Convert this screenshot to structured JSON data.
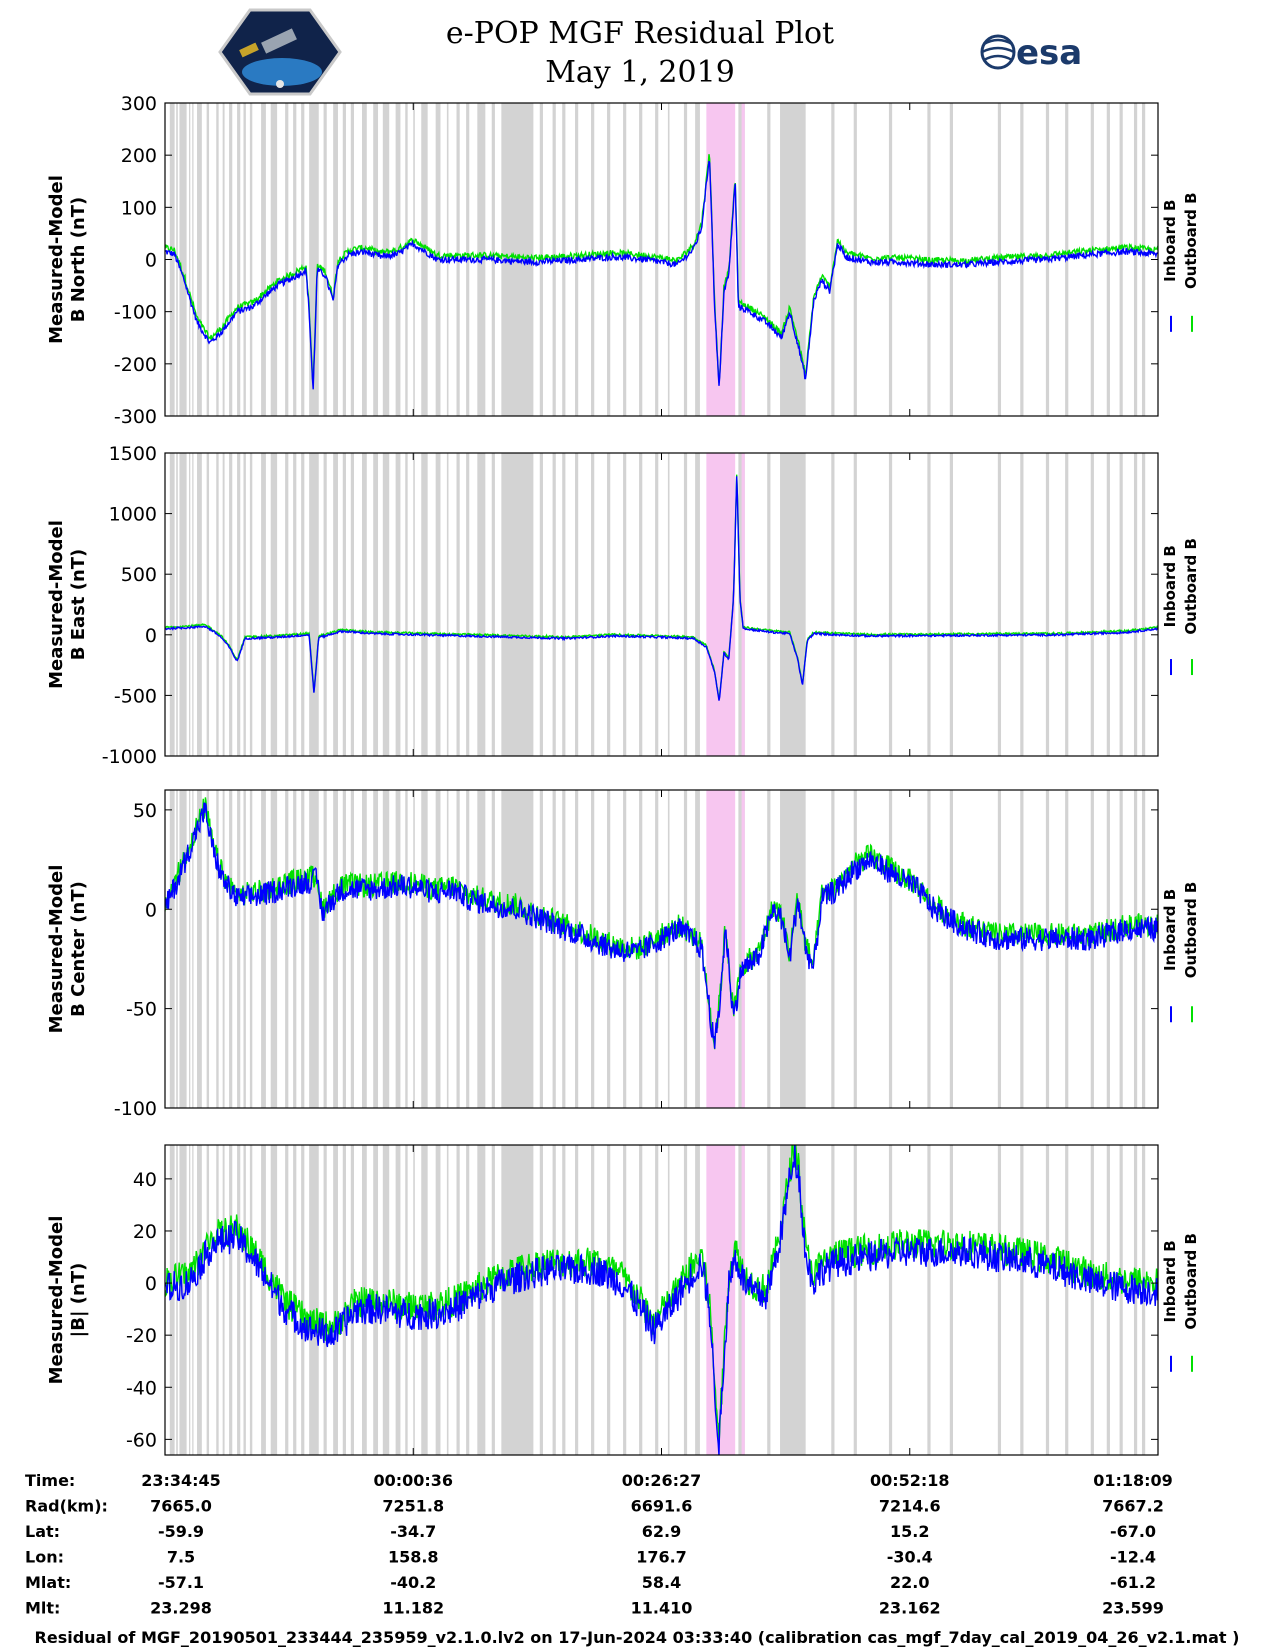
{
  "chart_data": {
    "type": "line",
    "title_lines": [
      "e-POP MGF Residual Plot",
      "May 1, 2019"
    ],
    "logo_right_text": "esa",
    "legend": [
      "Inboard B",
      "Outboard B"
    ],
    "series_colors": {
      "Inboard B": "#0000ff",
      "Outboard B": "#00e000"
    },
    "highlight_colors": {
      "gap": "#d3d3d3",
      "event": "#f7c6f0"
    },
    "x_domain": [
      0,
      6200
    ],
    "gap_intervals": [
      [
        30,
        60
      ],
      [
        70,
        80
      ],
      [
        90,
        135
      ],
      [
        150,
        158
      ],
      [
        170,
        178
      ],
      [
        200,
        230
      ],
      [
        260,
        275
      ],
      [
        320,
        335
      ],
      [
        360,
        372
      ],
      [
        400,
        420
      ],
      [
        450,
        470
      ],
      [
        490,
        505
      ],
      [
        530,
        545
      ],
      [
        600,
        630
      ],
      [
        660,
        700
      ],
      [
        750,
        770
      ],
      [
        800,
        820
      ],
      [
        850,
        870
      ],
      [
        900,
        960
      ],
      [
        990,
        1010
      ],
      [
        1050,
        1080
      ],
      [
        1110,
        1130
      ],
      [
        1160,
        1180
      ],
      [
        1230,
        1260
      ],
      [
        1300,
        1330
      ],
      [
        1360,
        1400
      ],
      [
        1440,
        1470
      ],
      [
        1500,
        1515
      ],
      [
        1550,
        1560
      ],
      [
        1600,
        1640
      ],
      [
        1690,
        1720
      ],
      [
        1760,
        1770
      ],
      [
        1820,
        1840
      ],
      [
        1880,
        1900
      ],
      [
        1950,
        2000
      ],
      [
        2040,
        2060
      ],
      [
        2100,
        2300
      ],
      [
        2340,
        2360
      ],
      [
        2420,
        2440
      ],
      [
        2480,
        2500
      ],
      [
        2560,
        2580
      ],
      [
        2660,
        2680
      ],
      [
        2760,
        2780
      ],
      [
        2860,
        2880
      ],
      [
        2960,
        2980
      ],
      [
        3060,
        3080
      ],
      [
        3140,
        3150
      ],
      [
        3240,
        3260
      ],
      [
        3310,
        3340
      ],
      [
        3500,
        3520
      ],
      [
        3580,
        3620
      ],
      [
        3760,
        3780
      ],
      [
        3840,
        4000
      ],
      [
        4160,
        4180
      ],
      [
        4300,
        4320
      ],
      [
        4520,
        4540
      ],
      [
        4760,
        4780
      ],
      [
        4900,
        4920
      ],
      [
        5200,
        5220
      ],
      [
        5340,
        5360
      ],
      [
        5500,
        5520
      ],
      [
        5620,
        5640
      ],
      [
        5780,
        5800
      ],
      [
        5880,
        5900
      ],
      [
        5960,
        5980
      ],
      [
        6050,
        6070
      ],
      [
        6100,
        6120
      ]
    ],
    "event_intervals": [
      [
        3380,
        3560
      ],
      [
        3600,
        3620
      ]
    ],
    "panels": [
      {
        "ylabel_lines": [
          "Measured-Model",
          "B North (nT)"
        ],
        "ylim": [
          -300,
          300
        ],
        "yticks": [
          -300,
          -200,
          -100,
          0,
          100,
          200,
          300
        ],
        "ytick_labels": [
          "-300",
          "-200",
          "-100",
          "0",
          "100",
          "200",
          "300"
        ],
        "noise": 6,
        "outboard_offset": 8,
        "inboard": [
          [
            0,
            15
          ],
          [
            60,
            10
          ],
          [
            120,
            -40
          ],
          [
            200,
            -120
          ],
          [
            280,
            -160
          ],
          [
            350,
            -140
          ],
          [
            450,
            -100
          ],
          [
            550,
            -90
          ],
          [
            700,
            -50
          ],
          [
            800,
            -35
          ],
          [
            880,
            -20
          ],
          [
            900,
            -100
          ],
          [
            925,
            -255
          ],
          [
            950,
            -20
          ],
          [
            1000,
            -30
          ],
          [
            1050,
            -80
          ],
          [
            1080,
            -10
          ],
          [
            1150,
            10
          ],
          [
            1250,
            15
          ],
          [
            1350,
            5
          ],
          [
            1450,
            10
          ],
          [
            1550,
            30
          ],
          [
            1700,
            0
          ],
          [
            2000,
            0
          ],
          [
            2300,
            -5
          ],
          [
            2600,
            0
          ],
          [
            2800,
            5
          ],
          [
            3000,
            0
          ],
          [
            3200,
            -10
          ],
          [
            3300,
            20
          ],
          [
            3350,
            60
          ],
          [
            3400,
            200
          ],
          [
            3430,
            -80
          ],
          [
            3460,
            -250
          ],
          [
            3490,
            -60
          ],
          [
            3520,
            -30
          ],
          [
            3560,
            150
          ],
          [
            3580,
            -90
          ],
          [
            3650,
            -100
          ],
          [
            3750,
            -120
          ],
          [
            3850,
            -150
          ],
          [
            3900,
            -100
          ],
          [
            3950,
            -160
          ],
          [
            4000,
            -230
          ],
          [
            4050,
            -80
          ],
          [
            4100,
            -40
          ],
          [
            4150,
            -60
          ],
          [
            4200,
            30
          ],
          [
            4250,
            5
          ],
          [
            4400,
            -5
          ],
          [
            4600,
            -5
          ],
          [
            4800,
            -10
          ],
          [
            5000,
            -10
          ],
          [
            5200,
            -5
          ],
          [
            5500,
            0
          ],
          [
            5800,
            10
          ],
          [
            6000,
            15
          ],
          [
            6200,
            10
          ]
        ]
      },
      {
        "ylabel_lines": [
          "Measured-Model",
          "B East (nT)"
        ],
        "ylim": [
          -1000,
          1500
        ],
        "yticks": [
          -1000,
          -500,
          0,
          500,
          1000,
          1500
        ],
        "ytick_labels": [
          "-1000",
          "-500",
          "0",
          "500",
          "1000",
          "1500"
        ],
        "noise": 8,
        "outboard_offset": 12,
        "inboard": [
          [
            0,
            50
          ],
          [
            150,
            60
          ],
          [
            250,
            70
          ],
          [
            300,
            30
          ],
          [
            350,
            -20
          ],
          [
            400,
            -100
          ],
          [
            450,
            -220
          ],
          [
            500,
            -30
          ],
          [
            700,
            -20
          ],
          [
            900,
            0
          ],
          [
            930,
            -480
          ],
          [
            960,
            -20
          ],
          [
            1000,
            -10
          ],
          [
            1100,
            30
          ],
          [
            1300,
            10
          ],
          [
            1600,
            0
          ],
          [
            1900,
            -10
          ],
          [
            2200,
            -20
          ],
          [
            2500,
            -30
          ],
          [
            2800,
            -10
          ],
          [
            3100,
            -20
          ],
          [
            3300,
            -30
          ],
          [
            3380,
            -100
          ],
          [
            3430,
            -300
          ],
          [
            3460,
            -550
          ],
          [
            3490,
            -150
          ],
          [
            3520,
            -200
          ],
          [
            3550,
            300
          ],
          [
            3570,
            1340
          ],
          [
            3590,
            300
          ],
          [
            3610,
            50
          ],
          [
            3800,
            20
          ],
          [
            3900,
            10
          ],
          [
            3950,
            -200
          ],
          [
            3980,
            -420
          ],
          [
            4010,
            -50
          ],
          [
            4050,
            10
          ],
          [
            4200,
            0
          ],
          [
            4400,
            -10
          ],
          [
            5000,
            -5
          ],
          [
            5600,
            0
          ],
          [
            6000,
            20
          ],
          [
            6200,
            50
          ]
        ]
      },
      {
        "ylabel_lines": [
          "Measured-Model",
          "B Center (nT)"
        ],
        "ylim": [
          -100,
          60
        ],
        "yticks": [
          -100,
          -50,
          0,
          50
        ],
        "ytick_labels": [
          "-100",
          "-50",
          "0",
          "50"
        ],
        "noise": 6,
        "outboard_offset": 2,
        "inboard": [
          [
            0,
            0
          ],
          [
            80,
            15
          ],
          [
            200,
            40
          ],
          [
            250,
            50
          ],
          [
            300,
            30
          ],
          [
            360,
            15
          ],
          [
            450,
            5
          ],
          [
            600,
            7
          ],
          [
            800,
            12
          ],
          [
            950,
            15
          ],
          [
            980,
            -2
          ],
          [
            1100,
            10
          ],
          [
            1300,
            10
          ],
          [
            1500,
            12
          ],
          [
            1700,
            8
          ],
          [
            1800,
            10
          ],
          [
            1900,
            5
          ],
          [
            2050,
            2
          ],
          [
            2200,
            0
          ],
          [
            2350,
            -5
          ],
          [
            2500,
            -10
          ],
          [
            2650,
            -15
          ],
          [
            2800,
            -20
          ],
          [
            2950,
            -22
          ],
          [
            3100,
            -15
          ],
          [
            3200,
            -10
          ],
          [
            3300,
            -15
          ],
          [
            3350,
            -20
          ],
          [
            3400,
            -50
          ],
          [
            3430,
            -70
          ],
          [
            3460,
            -50
          ],
          [
            3500,
            -10
          ],
          [
            3550,
            -55
          ],
          [
            3600,
            -30
          ],
          [
            3700,
            -25
          ],
          [
            3800,
            0
          ],
          [
            3850,
            -5
          ],
          [
            3900,
            -25
          ],
          [
            3950,
            5
          ],
          [
            4000,
            -20
          ],
          [
            4050,
            -30
          ],
          [
            4100,
            5
          ],
          [
            4200,
            10
          ],
          [
            4300,
            20
          ],
          [
            4400,
            25
          ],
          [
            4500,
            20
          ],
          [
            4600,
            15
          ],
          [
            4700,
            10
          ],
          [
            4800,
            0
          ],
          [
            4900,
            -5
          ],
          [
            5000,
            -10
          ],
          [
            5200,
            -15
          ],
          [
            5400,
            -15
          ],
          [
            5600,
            -15
          ],
          [
            5800,
            -15
          ],
          [
            6000,
            -10
          ],
          [
            6200,
            -10
          ]
        ]
      },
      {
        "ylabel_lines": [
          "Measured-Model",
          "|B| (nT)"
        ],
        "ylim": [
          -66,
          53
        ],
        "yticks": [
          -60,
          -40,
          -20,
          0,
          20,
          40
        ],
        "ytick_labels": [
          "-60",
          "-40",
          "-20",
          "0",
          "20",
          "40"
        ],
        "noise": 6,
        "outboard_offset": 3,
        "inboard": [
          [
            0,
            -2
          ],
          [
            150,
            0
          ],
          [
            300,
            15
          ],
          [
            450,
            18
          ],
          [
            600,
            5
          ],
          [
            750,
            -10
          ],
          [
            900,
            -18
          ],
          [
            1050,
            -20
          ],
          [
            1200,
            -10
          ],
          [
            1350,
            -10
          ],
          [
            1500,
            -12
          ],
          [
            1650,
            -12
          ],
          [
            1800,
            -10
          ],
          [
            1950,
            -5
          ],
          [
            2100,
            0
          ],
          [
            2250,
            3
          ],
          [
            2400,
            5
          ],
          [
            2550,
            5
          ],
          [
            2700,
            5
          ],
          [
            2850,
            0
          ],
          [
            2950,
            -8
          ],
          [
            3050,
            -18
          ],
          [
            3150,
            -10
          ],
          [
            3250,
            0
          ],
          [
            3350,
            8
          ],
          [
            3400,
            -10
          ],
          [
            3430,
            -40
          ],
          [
            3460,
            -62
          ],
          [
            3490,
            -30
          ],
          [
            3520,
            0
          ],
          [
            3560,
            10
          ],
          [
            3620,
            0
          ],
          [
            3700,
            -5
          ],
          [
            3750,
            -5
          ],
          [
            3800,
            5
          ],
          [
            3850,
            20
          ],
          [
            3900,
            40
          ],
          [
            3930,
            50
          ],
          [
            3960,
            40
          ],
          [
            4000,
            10
          ],
          [
            4050,
            0
          ],
          [
            4100,
            5
          ],
          [
            4200,
            8
          ],
          [
            4400,
            10
          ],
          [
            4600,
            12
          ],
          [
            4800,
            12
          ],
          [
            5000,
            12
          ],
          [
            5200,
            10
          ],
          [
            5400,
            8
          ],
          [
            5600,
            5
          ],
          [
            5800,
            0
          ],
          [
            6000,
            -2
          ],
          [
            6200,
            -3
          ]
        ]
      }
    ],
    "info_rows": [
      {
        "label": "Time:",
        "values": [
          "23:34:45",
          "00:00:36",
          "00:26:27",
          "00:52:18",
          "01:18:09"
        ]
      },
      {
        "label": "Rad(km):",
        "values": [
          "7665.0",
          "7251.8",
          "6691.6",
          "7214.6",
          "7667.2"
        ]
      },
      {
        "label": "Lat:",
        "values": [
          "-59.9",
          "-34.7",
          "62.9",
          "15.2",
          "-67.0"
        ]
      },
      {
        "label": "Lon:",
        "values": [
          "7.5",
          "158.8",
          "176.7",
          "-30.4",
          "-12.4"
        ]
      },
      {
        "label": "Mlat:",
        "values": [
          "-57.1",
          "-40.2",
          "58.4",
          "22.0",
          "-61.2"
        ]
      },
      {
        "label": "Mlt:",
        "values": [
          "23.298",
          "11.182",
          "11.410",
          "23.162",
          "23.599"
        ]
      }
    ],
    "footer": "Residual of MGF_20190501_233444_235959_v2.1.0.lv2 on 17-Jun-2024 03:33:40 (calibration cas_mgf_7day_cal_2019_04_26_v2.1.mat )"
  }
}
